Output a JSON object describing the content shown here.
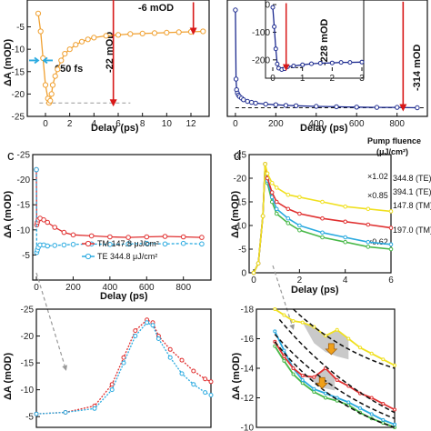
{
  "colors": {
    "orange": "#f0a030",
    "navy": "#1c2a8f",
    "red": "#e03030",
    "cyan": "#2aaae0",
    "green": "#48b848",
    "yellow": "#f0e020",
    "arrow_red": "#d81818",
    "arrow_cyan": "#2aaae0",
    "arrow_orange": "#f0a018",
    "dash_black": "#111111",
    "gray_fill": "#bbbbbb"
  },
  "panels": {
    "a": {
      "xlabel": "Delay (ps)",
      "ylabel": "ΔA (mOD)",
      "ann_6": "-6 mOD",
      "ann_22": "-22 mOD",
      "ann_650": "650 fs"
    },
    "b": {
      "xlabel": "Delay (ps)",
      "ann_314": "-314 mOD",
      "ann_228": "-228 mOD"
    },
    "c": {
      "letter": "c",
      "xlabel": "Delay (ps)",
      "ylabel": "ΔA (mOD)",
      "legend_tm": "TM 147.8 μJ/cm²",
      "legend_te": "TE  344.8 μJ/cm²"
    },
    "c_zoom": {
      "ylabel": "ΔA (mOD)"
    },
    "d": {
      "letter": "d",
      "xlabel": "Delay (ps)",
      "ylabel": "ΔA (mOD)",
      "pump_title": "Pump fluence",
      "pump_unit": "(μJ/cm²)",
      "labels": [
        "344.8 (TE)",
        "394.1 (TE)",
        "147.8 (TM)",
        "197.0 (TM)"
      ],
      "scales": [
        "×1.02",
        "×0.85",
        "×0.62"
      ]
    },
    "d_zoom": {
      "ylabel": "ΔA (mOD)"
    }
  },
  "chart_data": [
    {
      "panel": "a",
      "type": "scatter",
      "xlabel": "Delay (ps)",
      "ylabel": "ΔA (mOD)",
      "xlim": [
        -1.5,
        13.5
      ],
      "ylim": [
        -25,
        1
      ],
      "x_ticks": [
        0,
        2,
        4,
        6,
        8,
        10,
        12
      ],
      "y_ticks": [
        -5,
        -10,
        -15,
        -20,
        -25
      ],
      "series": [
        {
          "color": "orange",
          "x": [
            -0.6,
            -0.4,
            -0.2,
            0,
            0.2,
            0.3,
            0.4,
            0.5,
            0.6,
            0.8,
            1.0,
            1.3,
            1.6,
            2.0,
            2.5,
            3.0,
            3.5,
            4.0,
            5.0,
            6.0,
            7.0,
            8.0,
            9.0,
            10.0,
            11.0,
            12.0,
            13.0
          ],
          "values": [
            -2.0,
            -6.0,
            -12.0,
            -18.0,
            -21.0,
            -22.0,
            -21.5,
            -20.0,
            -18.0,
            -16.0,
            -14.5,
            -12.5,
            -11.0,
            -10.0,
            -9.0,
            -8.3,
            -7.8,
            -7.4,
            -7.0,
            -6.8,
            -6.6,
            -6.5,
            -6.4,
            -6.3,
            -6.2,
            -6.1,
            -6.0
          ]
        }
      ]
    },
    {
      "panel": "b",
      "type": "scatter",
      "xlabel": "Delay (ps)",
      "xlim": [
        -40,
        950
      ],
      "ylim": [
        -340,
        10
      ],
      "x_ticks": [
        0,
        200,
        400,
        600,
        800
      ],
      "series": [
        {
          "color": "navy",
          "x": [
            0,
            3,
            6,
            10,
            15,
            20,
            30,
            40,
            60,
            80,
            100,
            150,
            200,
            250,
            300,
            400,
            500,
            600,
            700,
            800,
            900
          ],
          "values": [
            -20,
            -228,
            -260,
            -270,
            -276,
            -280,
            -285,
            -290,
            -295,
            -298,
            -300,
            -303,
            -305,
            -307,
            -308,
            -310,
            -311,
            -312,
            -313,
            -313,
            -314
          ]
        }
      ],
      "inset": {
        "xlim": [
          0,
          3
        ],
        "ylim": [
          -240,
          10
        ],
        "x_ticks": [
          0,
          1,
          2,
          3
        ],
        "y_ticks": [
          0,
          -100,
          -200
        ],
        "x": [
          0.0,
          0.05,
          0.1,
          0.15,
          0.2,
          0.3,
          0.4,
          0.5,
          0.7,
          1.0,
          1.3,
          1.6,
          2.0,
          2.3,
          2.6,
          3.0
        ],
        "values": [
          -10,
          -80,
          -160,
          -215,
          -230,
          -235,
          -232,
          -225,
          -222,
          -218,
          -214,
          -212,
          -211,
          -209,
          -209,
          -208
        ]
      }
    },
    {
      "panel": "c",
      "type": "scatter",
      "xlabel": "Delay (ps)",
      "ylabel": "ΔA (mOD)",
      "xlim": [
        -20,
        950
      ],
      "ylim": [
        -25,
        0
      ],
      "x_ticks": [
        0,
        200,
        400,
        600,
        800
      ],
      "y_ticks": [
        -5,
        -10,
        -15,
        -20,
        -25
      ],
      "series": [
        {
          "name": "TM 147.8 μJ/cm²",
          "color": "red",
          "x": [
            0,
            2,
            5,
            10,
            20,
            40,
            60,
            100,
            150,
            200,
            300,
            400,
            500,
            600,
            700,
            800,
            900
          ],
          "values": [
            -22,
            -11,
            -11.5,
            -12,
            -12.3,
            -12,
            -11.5,
            -10.5,
            -9.5,
            -9,
            -8.8,
            -8.6,
            -8.5,
            -8.6,
            -8.7,
            -8.6,
            -8.5
          ]
        },
        {
          "name": "TE  344.8 μJ/cm²",
          "color": "cyan",
          "x": [
            0,
            2,
            5,
            10,
            20,
            40,
            60,
            100,
            150,
            200,
            300,
            400,
            500,
            600,
            700,
            800,
            900
          ],
          "values": [
            -22,
            -5.5,
            -6.0,
            -6.5,
            -7.0,
            -7.0,
            -6.8,
            -6.9,
            -7.0,
            -7.1,
            -7.2,
            -7.1,
            -7.2,
            -7.3,
            -7.2,
            -7.3,
            -7.2
          ]
        }
      ]
    },
    {
      "panel": "c-zoom",
      "type": "scatter",
      "ylabel": "ΔA (mOD)",
      "xlim": [
        -1.5,
        1.5
      ],
      "ylim": [
        -25,
        -3
      ],
      "y_ticks": [
        -5,
        -10,
        -15,
        -20,
        -25
      ],
      "series": [
        {
          "color": "red",
          "x": [
            -1.5,
            -1.0,
            -0.5,
            -0.2,
            0.0,
            0.2,
            0.4,
            0.5,
            0.6,
            0.8,
            1.0,
            1.2,
            1.4,
            1.5
          ],
          "values": [
            -5.5,
            -5.8,
            -7,
            -11,
            -16,
            -21,
            -23,
            -22.5,
            -20,
            -17.5,
            -15.5,
            -13.5,
            -12,
            -11.5
          ]
        },
        {
          "color": "cyan",
          "x": [
            -1.5,
            -1.0,
            -0.5,
            -0.2,
            0.0,
            0.2,
            0.4,
            0.5,
            0.6,
            0.8,
            1.0,
            1.2,
            1.4,
            1.5
          ],
          "values": [
            -5.5,
            -5.8,
            -6.5,
            -10,
            -15,
            -20,
            -22.5,
            -22,
            -19.5,
            -16,
            -13,
            -11,
            -9.5,
            -9.0
          ]
        }
      ]
    },
    {
      "panel": "d",
      "type": "line",
      "xlabel": "Delay (ps)",
      "ylabel": "ΔA (mOD)",
      "xlim": [
        -0.2,
        6
      ],
      "ylim": [
        -25,
        0
      ],
      "x_ticks": [
        0,
        2,
        4,
        6
      ],
      "y_ticks": [
        0,
        -5,
        -10,
        -15,
        -20,
        -25
      ],
      "series": [
        {
          "name": "344.8 (TE)",
          "color": "green",
          "x": [
            0,
            0.2,
            0.4,
            0.5,
            0.6,
            0.8,
            1.0,
            1.5,
            2.0,
            3.0,
            4.0,
            5.0,
            6.0
          ],
          "values": [
            0,
            -2,
            -12,
            -23,
            -19,
            -15,
            -12.5,
            -10.5,
            -9,
            -7.5,
            -6.5,
            -5.5,
            -5.0
          ]
        },
        {
          "name": "394.1 (TE)",
          "color": "cyan",
          "x": [
            0,
            0.2,
            0.4,
            0.5,
            0.6,
            0.8,
            1.0,
            1.5,
            2.0,
            3.0,
            4.0,
            5.0,
            6.0
          ],
          "values": [
            0,
            -2,
            -12,
            -23,
            -19.5,
            -16,
            -13.5,
            -11.5,
            -10,
            -8.5,
            -7.5,
            -6.5,
            -6.0
          ]
        },
        {
          "name": "147.8 (TM)",
          "color": "red",
          "x": [
            0,
            0.2,
            0.4,
            0.5,
            0.6,
            0.8,
            1.0,
            1.5,
            2.0,
            3.0,
            4.0,
            5.0,
            6.0
          ],
          "values": [
            0,
            -2,
            -12,
            -23,
            -20,
            -17,
            -15,
            -13.5,
            -12.5,
            -11.5,
            -10.8,
            -10.2,
            -9.5
          ]
        },
        {
          "name": "197.0 (TM)",
          "color": "yellow",
          "x": [
            0,
            0.2,
            0.4,
            0.5,
            0.6,
            0.8,
            1.0,
            1.5,
            2.0,
            3.0,
            4.0,
            5.0,
            6.0
          ],
          "values": [
            0,
            -2,
            -12,
            -23,
            -21,
            -19,
            -18,
            -16.5,
            -16,
            -15,
            -14,
            -13.5,
            -13.0
          ]
        }
      ]
    },
    {
      "panel": "d-zoom",
      "type": "line",
      "ylabel": "ΔA (mOD)",
      "xlim": [
        0,
        6
      ],
      "ylim": [
        -18,
        -10
      ],
      "y_ticks": [
        -10,
        -12,
        -14,
        -16,
        -18
      ],
      "series": [
        {
          "color": "green",
          "x": [
            0.8,
            1.2,
            1.6,
            2.0,
            2.5,
            3.0,
            3.5,
            4.0,
            4.5,
            5.0,
            5.5,
            6.0
          ],
          "values": [
            -15.5,
            -14.5,
            -13.6,
            -13.0,
            -12.4,
            -12.0,
            -11.8,
            -11.5,
            -11.0,
            -10.6,
            -10.3,
            -10.0
          ]
        },
        {
          "color": "cyan",
          "x": [
            0.8,
            1.2,
            1.6,
            2.0,
            2.5,
            3.0,
            3.5,
            4.0,
            4.5,
            5.0,
            5.5,
            6.0
          ],
          "values": [
            -16.5,
            -15.2,
            -14.0,
            -13.2,
            -12.6,
            -12.3,
            -12.0,
            -11.7,
            -11.3,
            -10.9,
            -10.5,
            -10.2
          ]
        },
        {
          "color": "red",
          "x": [
            0.8,
            1.2,
            1.6,
            2.0,
            2.5,
            3.0,
            3.5,
            4.0,
            4.5,
            5.0,
            5.5,
            6.0
          ],
          "values": [
            -15.8,
            -14.8,
            -14.0,
            -13.5,
            -13.4,
            -14.0,
            -13.2,
            -12.8,
            -12.3,
            -12.0,
            -11.6,
            -11.2
          ]
        },
        {
          "color": "yellow",
          "x": [
            0.8,
            1.2,
            1.6,
            2.0,
            2.5,
            3.0,
            3.5,
            4.0,
            4.5,
            5.0,
            5.5,
            6.0
          ],
          "values": [
            -18.0,
            -17.6,
            -17.2,
            -17.1,
            -16.8,
            -16.2,
            -16.6,
            -16.0,
            -15.4,
            -15.0,
            -14.6,
            -14.2
          ]
        }
      ]
    }
  ]
}
